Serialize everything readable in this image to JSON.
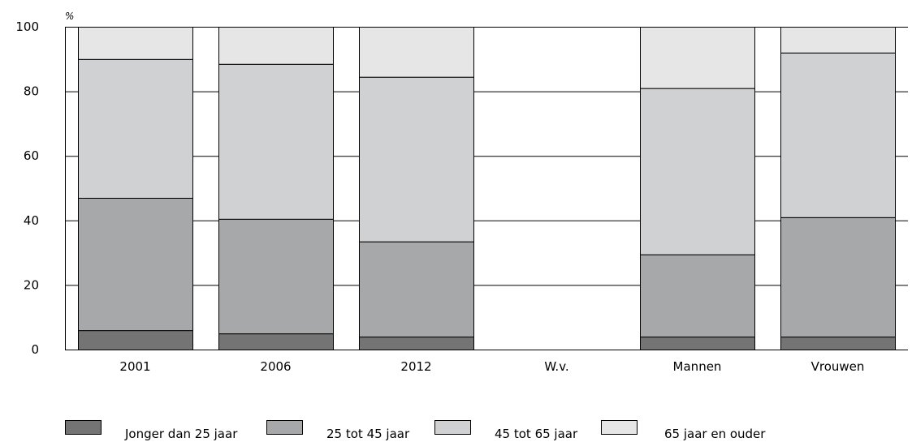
{
  "chart_data": {
    "type": "bar",
    "stacked": true,
    "y_unit": "%",
    "ylim": [
      0,
      100
    ],
    "yticks": [
      0,
      20,
      40,
      60,
      80,
      100
    ],
    "grid": true,
    "legend_position": "bottom",
    "categories": [
      "2001",
      "2006",
      "2012",
      "W.v.",
      "Mannen",
      "Vrouwen"
    ],
    "series": [
      {
        "name": "Jonger dan 25 jaar",
        "color": "#747474",
        "values": [
          6,
          5,
          4,
          null,
          4,
          4
        ]
      },
      {
        "name": "25 tot 45 jaar",
        "color": "#a7a8aa",
        "values": [
          41,
          35.5,
          29.5,
          null,
          25.5,
          37
        ]
      },
      {
        "name": "45 tot 65 jaar",
        "color": "#d0d1d3",
        "values": [
          43,
          48,
          51,
          null,
          51.5,
          51
        ]
      },
      {
        "name": "65 jaar en ouder",
        "color": "#e6e6e6",
        "values": [
          10,
          11.5,
          15.5,
          null,
          19,
          8
        ]
      }
    ]
  }
}
